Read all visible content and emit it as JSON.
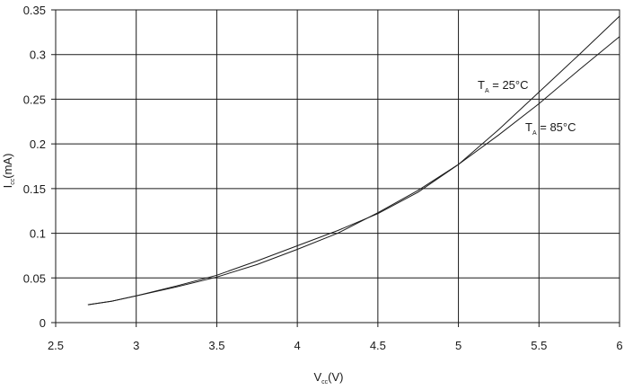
{
  "chart_data": {
    "type": "line",
    "xlabel": {
      "main": "V",
      "sub": "cc",
      "unit": "(V)"
    },
    "ylabel": {
      "main": "I",
      "sub": "cc",
      "unit": "(mA)"
    },
    "xlim": [
      2.5,
      6
    ],
    "ylim": [
      0,
      0.35
    ],
    "xticks": [
      "2.5",
      "3",
      "3.5",
      "4",
      "4.5",
      "5",
      "5.5",
      "6"
    ],
    "yticks": [
      "0",
      "0.05",
      "0.1",
      "0.15",
      "0.2",
      "0.25",
      "0.3",
      "0.35"
    ],
    "grid": true,
    "series": [
      {
        "name": {
          "main": "T",
          "sub": "A",
          "rest": " = 25°C"
        },
        "x": [
          2.7,
          2.85,
          3.0,
          3.25,
          3.5,
          3.75,
          4.0,
          4.25,
          4.5,
          4.75,
          5.0,
          5.25,
          5.5,
          5.75,
          6.0
        ],
        "y": [
          0.02,
          0.024,
          0.03,
          0.04,
          0.051,
          0.065,
          0.082,
          0.1,
          0.123,
          0.148,
          0.177,
          0.216,
          0.258,
          0.3,
          0.343
        ]
      },
      {
        "name": {
          "main": "T",
          "sub": "A",
          "rest": " = 85°C"
        },
        "x": [
          2.7,
          2.85,
          3.0,
          3.25,
          3.5,
          3.75,
          4.0,
          4.25,
          4.5,
          4.75,
          5.0,
          5.25,
          5.5,
          5.75,
          6.0
        ],
        "y": [
          0.02,
          0.024,
          0.03,
          0.041,
          0.053,
          0.069,
          0.086,
          0.103,
          0.122,
          0.146,
          0.177,
          0.21,
          0.245,
          0.283,
          0.32
        ]
      }
    ]
  }
}
